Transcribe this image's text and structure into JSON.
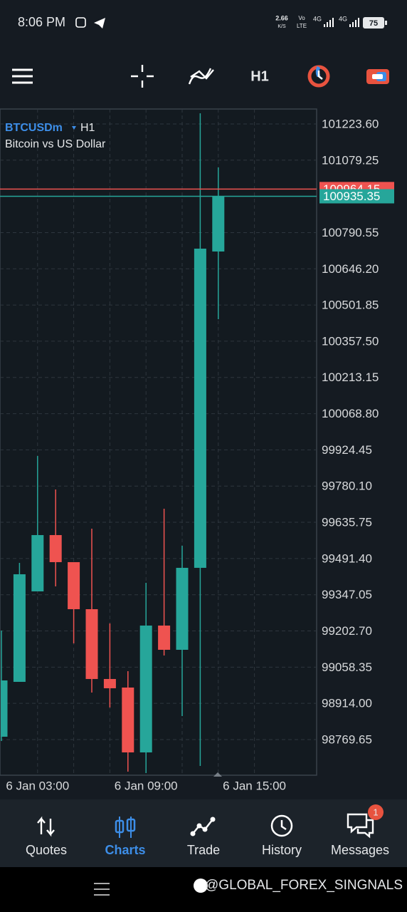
{
  "status_bar": {
    "time": "8:06 PM",
    "speed": "2.66",
    "speed_unit": "K/S",
    "volte": [
      "Vo",
      "LTE"
    ],
    "network": [
      "4G",
      "4G"
    ],
    "battery": "75"
  },
  "toolbar": {
    "timeframe": "H1"
  },
  "chart_data": {
    "type": "candlestick",
    "symbol": "BTCUSDm",
    "timeframe": "H1",
    "subtitle": "Bitcoin vs US Dollar",
    "categories": [
      null,
      null,
      "6 Jan 03:00",
      null,
      null,
      null,
      null,
      null,
      "6 Jan 09:00",
      null,
      null,
      null,
      null,
      null,
      "6 Jan 15:00"
    ],
    "open": [
      98781.0,
      98999.7,
      99360.4,
      99584.8,
      99476.9,
      99289.4,
      99011.1,
      98977.0,
      98718.5,
      99224.1,
      99127.5,
      99454.2,
      100715.2,
      null,
      null
    ],
    "high": [
      99204.2,
      99474.0,
      99900.1,
      99766.6,
      99476.9,
      99610.4,
      99232.6,
      99042.3,
      99394.5,
      99689.9,
      99542.2,
      101266.2,
      101050.3,
      null,
      null
    ],
    "low": [
      98764.0,
      98999.7,
      99360.4,
      99380.3,
      99153.1,
      98957.1,
      98897.5,
      98641.9,
      98636.2,
      99104.8,
      98863.4,
      98664.6,
      100445.4,
      null,
      null
    ],
    "close": [
      99005.4,
      99428.6,
      99584.8,
      99476.9,
      99289.4,
      99011.1,
      98974.2,
      98718.5,
      99224.1,
      99127.5,
      99454.2,
      100726.6,
      100935.35,
      null,
      null
    ],
    "up_color": "#26a69a",
    "down_color": "#ef5350",
    "ylim": [
      98627.6,
      101283.2
    ],
    "yticks": [
      {
        "value": 101223.6,
        "label": "101223.60"
      },
      101079.25,
      100790.55,
      {
        "value": 100646.2,
        "label": "100646.20"
      },
      100501.85,
      {
        "value": 100357.5,
        "label": "100357.50"
      },
      100213.15,
      {
        "value": 100068.8,
        "label": "100068.80"
      },
      99924.45,
      {
        "value": 99780.1,
        "label": "99780.10"
      },
      99635.75,
      {
        "value": 99491.4,
        "label": "99491.40"
      },
      99347.05,
      {
        "value": 99202.7,
        "label": "99202.70"
      },
      99058.35,
      {
        "value": 98914,
        "label": "98914.00"
      },
      98769.65
    ],
    "price_lines": [
      {
        "value": 100964.15,
        "color": "#ef5350"
      },
      {
        "value": 100935.35,
        "color": "#26a69a"
      }
    ],
    "grid": true
  },
  "nav": {
    "items": [
      "Quotes",
      "Charts",
      "Trade",
      "History",
      "Messages"
    ],
    "badge": "1"
  },
  "watermark": "@GLOBAL_FOREX_SINGNALS"
}
